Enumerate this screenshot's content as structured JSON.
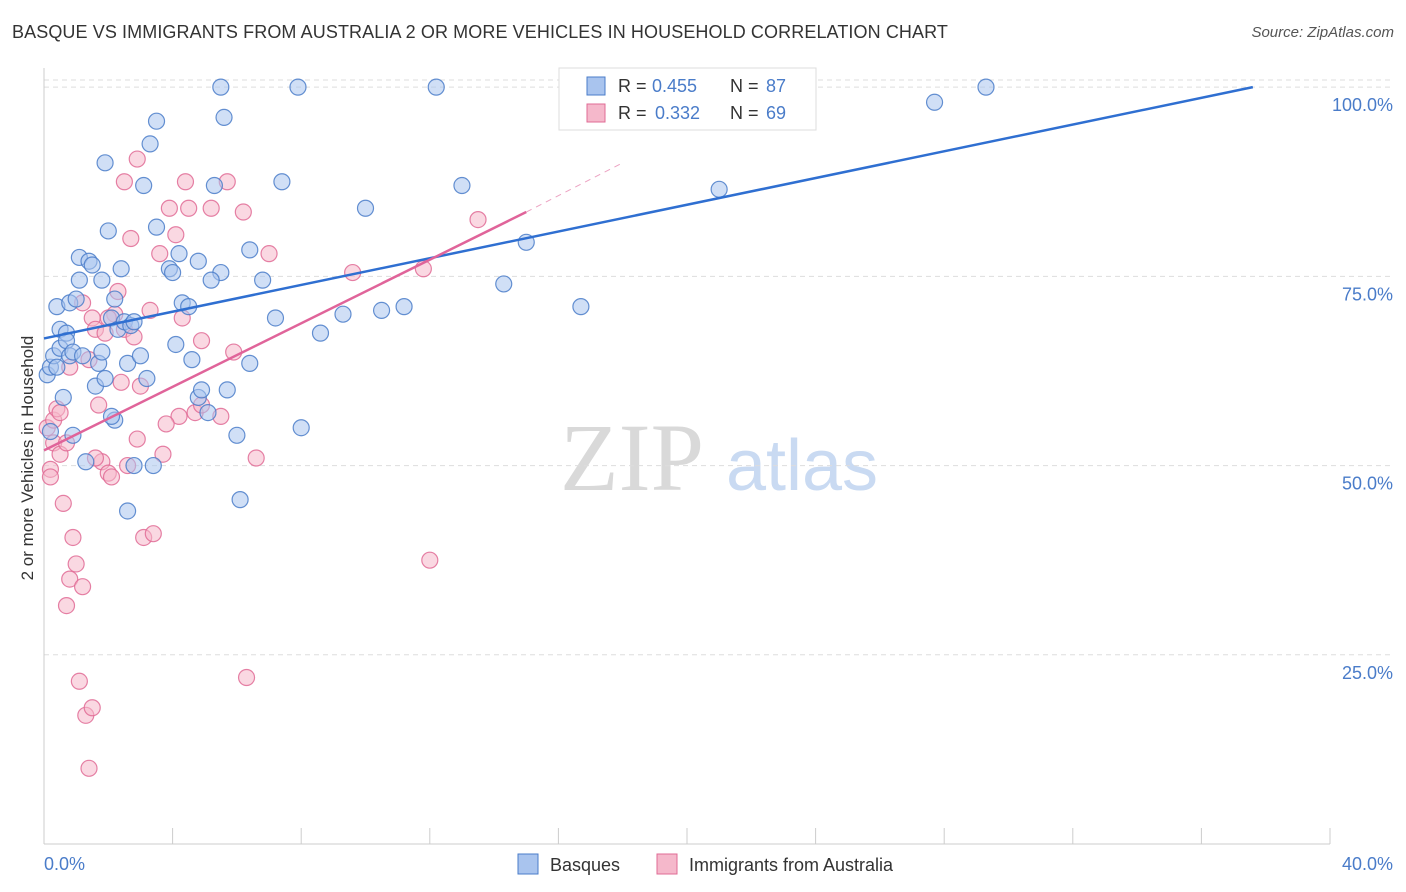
{
  "title": "BASQUE VS IMMIGRANTS FROM AUSTRALIA 2 OR MORE VEHICLES IN HOUSEHOLD CORRELATION CHART",
  "source": "Source: ZipAtlas.com",
  "watermark": {
    "zip": "ZIP",
    "atlas": "atlas"
  },
  "colors": {
    "blue": "#4a7cc9",
    "blue_fill": "#a9c4ee",
    "blue_line": "#2f6fd1",
    "pink": "#e06b95",
    "pink_fill": "#f5b8cb",
    "pink_line": "#e0649a",
    "grid": "#dddddd",
    "axis_text": "#4a7cc9"
  },
  "legend": {
    "rows": [
      {
        "r_label": "R =",
        "r_value": "0.455",
        "n_label": "N =",
        "n_value": "87"
      },
      {
        "r_label": "R =",
        "r_value": "0.332",
        "n_label": "N =",
        "n_value": "69"
      }
    ]
  },
  "bottom_legend": [
    "Basques",
    "Immigrants from Australia"
  ],
  "chart_data": {
    "type": "scatter",
    "title": "BASQUE VS IMMIGRANTS FROM AUSTRALIA 2 OR MORE VEHICLES IN HOUSEHOLD CORRELATION CHART",
    "xlabel": "",
    "ylabel": "2 or more Vehicles in Household",
    "xlim": [
      0,
      40
    ],
    "ylim": [
      0,
      102
    ],
    "x_tick_labels": [
      "0.0%",
      "40.0%"
    ],
    "y_ticks": [
      25,
      50,
      75,
      100
    ],
    "y_tick_labels": [
      "25.0%",
      "50.0%",
      "75.0%",
      "100.0%"
    ],
    "series": [
      {
        "name": "Basques",
        "color": "blue",
        "trend": {
          "x0": 0,
          "y0": 66.8,
          "x1": 37.6,
          "y1": 100
        },
        "points": [
          [
            0.1,
            62.0
          ],
          [
            0.2,
            63.0
          ],
          [
            0.3,
            64.5
          ],
          [
            0.4,
            63.0
          ],
          [
            0.4,
            71.0
          ],
          [
            0.5,
            68.0
          ],
          [
            0.5,
            65.5
          ],
          [
            0.6,
            59.0
          ],
          [
            0.7,
            67.5
          ],
          [
            0.7,
            66.5
          ],
          [
            0.8,
            64.5
          ],
          [
            0.8,
            71.5
          ],
          [
            0.9,
            65.0
          ],
          [
            1.0,
            72.0
          ],
          [
            1.1,
            74.5
          ],
          [
            1.1,
            77.5
          ],
          [
            1.2,
            64.5
          ],
          [
            1.4,
            77.0
          ],
          [
            1.5,
            76.5
          ],
          [
            1.6,
            60.5
          ],
          [
            1.7,
            63.5
          ],
          [
            1.8,
            65.0
          ],
          [
            1.8,
            74.5
          ],
          [
            1.9,
            61.5
          ],
          [
            2.0,
            81.0
          ],
          [
            2.1,
            69.5
          ],
          [
            2.2,
            72.0
          ],
          [
            2.3,
            68.0
          ],
          [
            2.4,
            76.0
          ],
          [
            2.5,
            69.0
          ],
          [
            2.6,
            63.5
          ],
          [
            2.7,
            68.5
          ],
          [
            2.8,
            69.0
          ],
          [
            3.0,
            64.5
          ],
          [
            3.1,
            87.0
          ],
          [
            3.3,
            92.5
          ],
          [
            3.5,
            81.5
          ],
          [
            3.9,
            76.0
          ],
          [
            4.0,
            75.5
          ],
          [
            4.2,
            78.0
          ],
          [
            4.3,
            71.5
          ],
          [
            4.5,
            71.0
          ],
          [
            4.6,
            64.0
          ],
          [
            4.8,
            59.0
          ],
          [
            4.9,
            60.0
          ],
          [
            5.1,
            57.0
          ],
          [
            5.3,
            87.0
          ],
          [
            5.5,
            75.5
          ],
          [
            5.7,
            60.0
          ],
          [
            6.0,
            54.0
          ],
          [
            6.1,
            45.5
          ],
          [
            6.4,
            63.5
          ],
          [
            6.8,
            74.5
          ],
          [
            7.2,
            69.5
          ],
          [
            7.4,
            87.5
          ],
          [
            8.0,
            55.0
          ],
          [
            8.6,
            67.5
          ],
          [
            9.3,
            70.0
          ],
          [
            10.0,
            84.0
          ],
          [
            10.5,
            70.5
          ],
          [
            11.2,
            71.0
          ],
          [
            12.2,
            100.0
          ],
          [
            13.0,
            87.0
          ],
          [
            14.3,
            74.0
          ],
          [
            15.0,
            79.5
          ],
          [
            16.7,
            71.0
          ],
          [
            21.0,
            86.5
          ],
          [
            27.7,
            98.0
          ],
          [
            29.3,
            100.0
          ],
          [
            1.9,
            90.0
          ],
          [
            2.2,
            56.0
          ],
          [
            2.8,
            50.0
          ],
          [
            3.5,
            95.5
          ],
          [
            3.2,
            61.5
          ],
          [
            2.6,
            44.0
          ],
          [
            4.8,
            77.0
          ],
          [
            5.5,
            100.0
          ],
          [
            5.6,
            96.0
          ],
          [
            7.9,
            100.0
          ],
          [
            5.2,
            74.5
          ],
          [
            3.4,
            50.0
          ],
          [
            6.4,
            78.5
          ],
          [
            1.3,
            50.5
          ],
          [
            4.1,
            66.0
          ],
          [
            0.2,
            54.5
          ],
          [
            0.9,
            54.0
          ],
          [
            2.1,
            56.5
          ]
        ]
      },
      {
        "name": "Immigrants from Australia",
        "color": "pink",
        "trend": {
          "x0": 0,
          "y0": 52.0,
          "x1": 15.0,
          "y1": 83.5
        },
        "trend_ext": {
          "x0": 15.0,
          "y0": 83.5,
          "x1": 18.0,
          "y1": 90.0
        },
        "points": [
          [
            0.1,
            55.0
          ],
          [
            0.2,
            49.5
          ],
          [
            0.3,
            56.0
          ],
          [
            0.3,
            53.0
          ],
          [
            0.4,
            57.5
          ],
          [
            0.5,
            51.5
          ],
          [
            0.6,
            45.0
          ],
          [
            0.7,
            31.5
          ],
          [
            0.8,
            35.0
          ],
          [
            0.9,
            40.5
          ],
          [
            1.0,
            37.0
          ],
          [
            1.1,
            21.5
          ],
          [
            1.2,
            34.0
          ],
          [
            1.3,
            17.0
          ],
          [
            1.4,
            10.0
          ],
          [
            1.5,
            69.5
          ],
          [
            1.6,
            68.0
          ],
          [
            1.7,
            58.0
          ],
          [
            1.8,
            50.5
          ],
          [
            1.9,
            67.5
          ],
          [
            2.0,
            49.0
          ],
          [
            2.1,
            48.5
          ],
          [
            2.2,
            70.0
          ],
          [
            2.3,
            73.0
          ],
          [
            2.4,
            61.0
          ],
          [
            2.5,
            68.0
          ],
          [
            2.6,
            50.0
          ],
          [
            2.7,
            80.0
          ],
          [
            2.9,
            53.5
          ],
          [
            3.1,
            40.5
          ],
          [
            3.4,
            41.0
          ],
          [
            3.6,
            78.0
          ],
          [
            3.7,
            51.5
          ],
          [
            3.9,
            84.0
          ],
          [
            4.1,
            80.5
          ],
          [
            4.3,
            69.5
          ],
          [
            4.5,
            84.0
          ],
          [
            4.7,
            57.0
          ],
          [
            4.9,
            66.5
          ],
          [
            5.2,
            84.0
          ],
          [
            5.5,
            56.5
          ],
          [
            5.7,
            87.5
          ],
          [
            5.9,
            65.0
          ],
          [
            6.2,
            83.5
          ],
          [
            6.6,
            51.0
          ],
          [
            7.0,
            78.0
          ],
          [
            9.6,
            75.5
          ],
          [
            11.8,
            76.0
          ],
          [
            12.0,
            37.5
          ],
          [
            13.5,
            82.5
          ],
          [
            0.8,
            63.0
          ],
          [
            1.4,
            64.0
          ],
          [
            2.9,
            90.5
          ],
          [
            4.4,
            87.5
          ],
          [
            2.5,
            87.5
          ],
          [
            4.2,
            56.5
          ],
          [
            6.3,
            22.0
          ],
          [
            1.5,
            18.0
          ],
          [
            3.0,
            60.5
          ],
          [
            3.8,
            55.5
          ],
          [
            2.0,
            69.5
          ],
          [
            1.2,
            71.5
          ],
          [
            0.5,
            57.0
          ],
          [
            0.2,
            48.5
          ],
          [
            0.7,
            53.0
          ],
          [
            2.8,
            67.0
          ],
          [
            3.3,
            70.5
          ],
          [
            4.9,
            58.0
          ],
          [
            1.6,
            51.0
          ]
        ]
      }
    ]
  }
}
